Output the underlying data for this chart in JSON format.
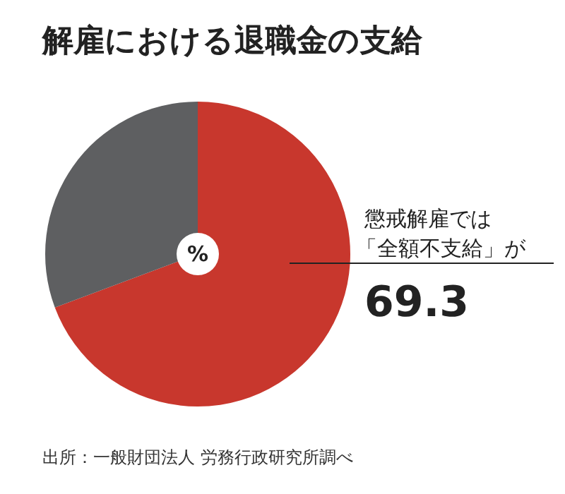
{
  "chart_data": {
    "type": "pie",
    "title": "解雇における退職金の支給",
    "categories": [
      null,
      null
    ],
    "values": [
      69.3,
      30.7
    ],
    "colors": [
      "#c8372d",
      "#5e5f61"
    ],
    "value_labels": [
      "69.3",
      null
    ],
    "annotations": [
      "%",
      "懲戒解雇では",
      "「全額不支給」が",
      "出所：一般財団法人 労務行政研究所調べ"
    ],
    "legend": false
  }
}
